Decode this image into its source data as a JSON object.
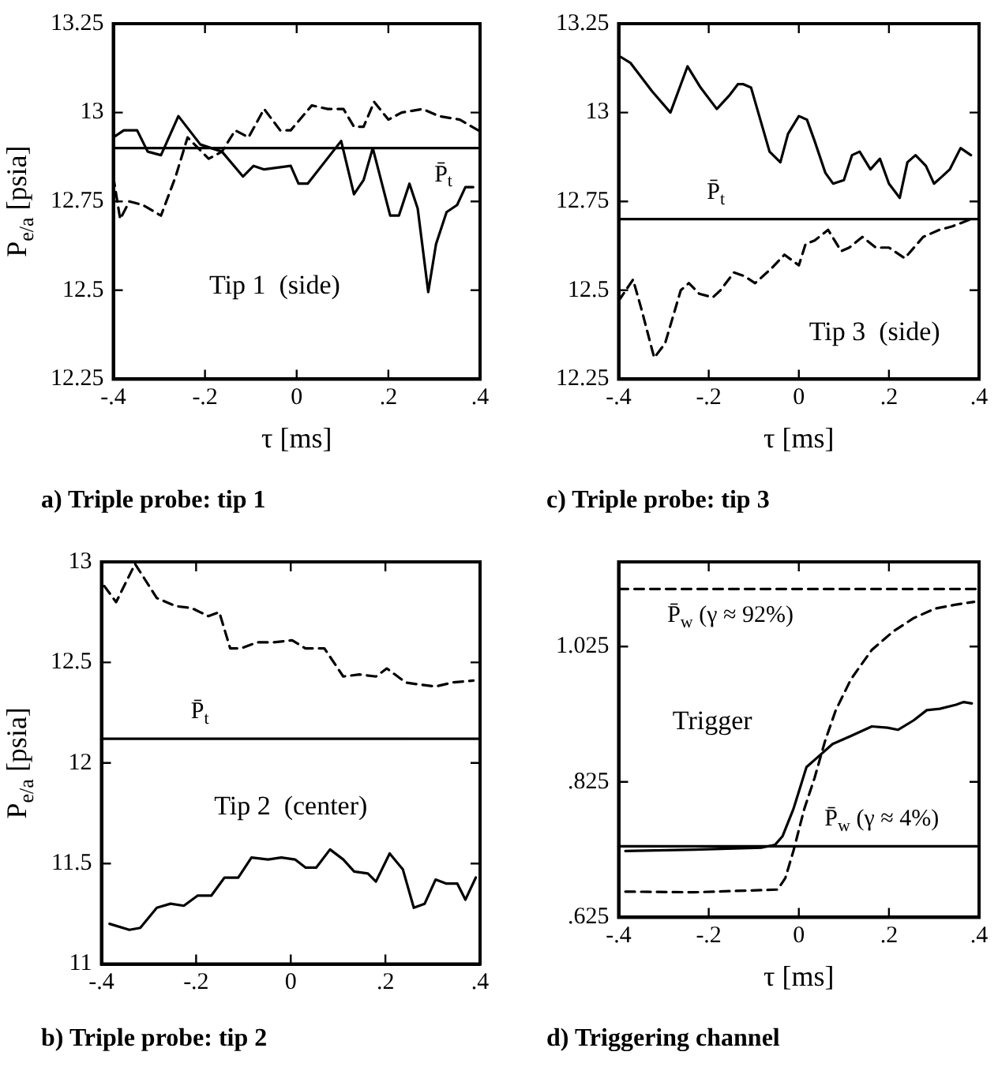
{
  "chart_data": [
    {
      "type": "line",
      "title": "a) Triple probe: tip 1",
      "xlabel": "τ [ms]",
      "ylabel": "P$_{e/a}$ [psia]",
      "xlim": [
        -0.4,
        0.4
      ],
      "xticks": [
        {
          "value": -0.4,
          "label": "-.4"
        },
        {
          "value": -0.2,
          "label": "-.2"
        },
        {
          "value": 0,
          "label": "0"
        },
        {
          "value": 0.2,
          "label": ".2"
        },
        {
          "value": 0.4,
          "label": ".4"
        }
      ],
      "ylim": [
        12.25,
        13.25
      ],
      "yticks": [
        12.25,
        12.5,
        12.75,
        13,
        13.25
      ],
      "grid": false,
      "legend": false,
      "marker": "none",
      "annotations": [
        "Tip 1  (side)"
      ],
      "ref_lines": [
        {
          "axis": "y",
          "value": 12.9,
          "label": "P̄$_{t}$",
          "color": "#000000",
          "line_style": "solid"
        }
      ],
      "series": [
        {
          "color": "#000000",
          "line_style": "solid",
          "x": [
            -0.4,
            -0.377,
            -0.348,
            -0.325,
            -0.296,
            -0.258,
            -0.21,
            -0.163,
            -0.117,
            -0.094,
            -0.071,
            -0.042,
            -0.013,
            0.004,
            0.024,
            0.097,
            0.125,
            0.146,
            0.166,
            0.204,
            0.223,
            0.246,
            0.264,
            0.287,
            0.304,
            0.327,
            0.35,
            0.368,
            0.385
          ],
          "values": [
            12.93,
            12.95,
            12.95,
            12.89,
            12.88,
            12.99,
            12.91,
            12.89,
            12.82,
            12.85,
            12.84,
            12.845,
            12.85,
            12.8,
            12.8,
            12.92,
            12.77,
            12.81,
            12.9,
            12.71,
            12.71,
            12.8,
            12.73,
            12.495,
            12.63,
            12.72,
            12.74,
            12.79,
            12.79
          ]
        },
        {
          "color": "#000000",
          "line_style": "dashed",
          "x": [
            -0.4,
            -0.385,
            -0.365,
            -0.336,
            -0.296,
            -0.264,
            -0.238,
            -0.192,
            -0.163,
            -0.134,
            -0.105,
            -0.071,
            -0.036,
            -0.013,
            0.033,
            0.068,
            0.102,
            0.125,
            0.146,
            0.169,
            0.2,
            0.229,
            0.275,
            0.31,
            0.356,
            0.396
          ],
          "values": [
            12.82,
            12.7,
            12.75,
            12.74,
            12.71,
            12.82,
            12.93,
            12.87,
            12.89,
            12.95,
            12.93,
            13.01,
            12.95,
            12.95,
            13.02,
            13.01,
            13.01,
            12.96,
            12.96,
            13.03,
            12.98,
            13.0,
            13.01,
            12.99,
            12.98,
            12.95
          ]
        }
      ]
    },
    {
      "type": "line",
      "title": "c) Triple probe: tip 3",
      "xlabel": "τ [ms]",
      "xlim": [
        -0.4,
        0.4
      ],
      "xticks": [
        {
          "value": -0.4,
          "label": "-.4"
        },
        {
          "value": -0.2,
          "label": "-.2"
        },
        {
          "value": 0,
          "label": "0"
        },
        {
          "value": 0.2,
          "label": ".2"
        },
        {
          "value": 0.4,
          "label": ".4"
        }
      ],
      "ylim": [
        12.25,
        13.25
      ],
      "yticks": [
        12.25,
        12.5,
        12.75,
        13,
        13.25
      ],
      "grid": false,
      "legend": false,
      "marker": "none",
      "annotations": [
        "Tip 3  (side)"
      ],
      "ref_lines": [
        {
          "axis": "y",
          "value": 12.7,
          "label": "P̄$_{t}$",
          "color": "#000000",
          "line_style": "solid"
        }
      ],
      "series": [
        {
          "color": "#000000",
          "line_style": "solid",
          "x": [
            -0.4,
            -0.374,
            -0.326,
            -0.285,
            -0.247,
            -0.218,
            -0.182,
            -0.153,
            -0.135,
            -0.124,
            -0.106,
            -0.065,
            -0.041,
            -0.024,
            0,
            0.018,
            0.035,
            0.059,
            0.076,
            0.1,
            0.118,
            0.135,
            0.159,
            0.18,
            0.2,
            0.224,
            0.241,
            0.259,
            0.282,
            0.3,
            0.318,
            0.335,
            0.359,
            0.382
          ],
          "values": [
            13.16,
            13.14,
            13.06,
            13.0,
            13.13,
            13.07,
            13.01,
            13.05,
            13.08,
            13.08,
            13.07,
            12.89,
            12.86,
            12.94,
            12.99,
            12.98,
            12.92,
            12.83,
            12.8,
            12.81,
            12.88,
            12.89,
            12.84,
            12.87,
            12.8,
            12.76,
            12.86,
            12.88,
            12.85,
            12.8,
            12.82,
            12.84,
            12.9,
            12.88
          ]
        },
        {
          "color": "#000000",
          "line_style": "dashed",
          "x": [
            -0.4,
            -0.368,
            -0.35,
            -0.321,
            -0.297,
            -0.262,
            -0.244,
            -0.221,
            -0.191,
            -0.174,
            -0.144,
            -0.121,
            -0.097,
            -0.062,
            -0.032,
            0,
            0.015,
            0.035,
            0.065,
            0.094,
            0.112,
            0.141,
            0.171,
            0.2,
            0.235,
            0.276,
            0.312,
            0.341,
            0.382
          ],
          "values": [
            12.47,
            12.53,
            12.45,
            12.31,
            12.35,
            12.5,
            12.52,
            12.49,
            12.48,
            12.5,
            12.55,
            12.54,
            12.52,
            12.56,
            12.6,
            12.57,
            12.63,
            12.64,
            12.67,
            12.61,
            12.62,
            12.65,
            12.62,
            12.62,
            12.59,
            12.65,
            12.67,
            12.68,
            12.7
          ]
        }
      ]
    },
    {
      "type": "line",
      "title": "b) Triple probe: tip 2",
      "ylabel": "P$_{e/a}$ [psia]",
      "xlim": [
        -0.4,
        0.4
      ],
      "xticks": [
        {
          "value": -0.4,
          "label": "-.4"
        },
        {
          "value": -0.2,
          "label": "-.2"
        },
        {
          "value": 0,
          "label": "0"
        },
        {
          "value": 0.2,
          "label": ".2"
        },
        {
          "value": 0.4,
          "label": ".4"
        }
      ],
      "ylim": [
        11,
        13
      ],
      "yticks": [
        11,
        11.5,
        12,
        12.5,
        13
      ],
      "grid": false,
      "legend": false,
      "marker": "none",
      "annotations": [
        "Tip 2  (center)"
      ],
      "ref_lines": [
        {
          "axis": "y",
          "value": 12.12,
          "label": "P̄$_{t}$",
          "color": "#000000",
          "line_style": "solid"
        }
      ],
      "series": [
        {
          "color": "#000000",
          "line_style": "dashed",
          "x": [
            -0.394,
            -0.369,
            -0.329,
            -0.283,
            -0.243,
            -0.209,
            -0.174,
            -0.151,
            -0.128,
            -0.105,
            -0.071,
            -0.037,
            0.003,
            0.031,
            0.071,
            0.111,
            0.145,
            0.18,
            0.203,
            0.243,
            0.272,
            0.306,
            0.341,
            0.386
          ],
          "values": [
            12.88,
            12.8,
            12.99,
            12.82,
            12.78,
            12.77,
            12.73,
            12.75,
            12.57,
            12.57,
            12.6,
            12.6,
            12.61,
            12.57,
            12.57,
            12.43,
            12.44,
            12.43,
            12.47,
            12.4,
            12.39,
            12.38,
            12.4,
            12.41
          ]
        },
        {
          "color": "#000000",
          "line_style": "solid",
          "x": [
            -0.383,
            -0.341,
            -0.318,
            -0.283,
            -0.254,
            -0.226,
            -0.197,
            -0.168,
            -0.14,
            -0.111,
            -0.083,
            -0.048,
            -0.02,
            0.009,
            0.031,
            0.054,
            0.083,
            0.111,
            0.134,
            0.163,
            0.18,
            0.209,
            0.237,
            0.26,
            0.283,
            0.306,
            0.329,
            0.352,
            0.369,
            0.391
          ],
          "values": [
            11.2,
            11.17,
            11.18,
            11.28,
            11.3,
            11.29,
            11.34,
            11.34,
            11.43,
            11.43,
            11.53,
            11.52,
            11.53,
            11.52,
            11.48,
            11.48,
            11.57,
            11.52,
            11.46,
            11.45,
            11.41,
            11.55,
            11.47,
            11.28,
            11.3,
            11.42,
            11.4,
            11.4,
            11.32,
            11.43
          ]
        }
      ]
    },
    {
      "type": "line",
      "title": "d) Triggering channel",
      "xlabel": "τ [ms]",
      "xlim": [
        -0.4,
        0.4
      ],
      "xticks": [
        {
          "value": -0.4,
          "label": "-.4"
        },
        {
          "value": -0.2,
          "label": "-.2"
        },
        {
          "value": 0,
          "label": "0"
        },
        {
          "value": 0.2,
          "label": ".2"
        },
        {
          "value": 0.4,
          "label": ".4"
        }
      ],
      "ylim": [
        0.625,
        1.15
      ],
      "yticks": [
        {
          "value": 0.625,
          "label": ".625"
        },
        {
          "value": 0.825,
          "label": ".825"
        },
        1.025
      ],
      "grid": false,
      "legend": false,
      "marker": "none",
      "annotations": [
        "Trigger"
      ],
      "ref_lines": [
        {
          "axis": "y",
          "value": 1.11,
          "label": "P̄$_{w}$ (γ ≈ 92%)",
          "color": "#000000",
          "line_style": "dashed"
        },
        {
          "axis": "y",
          "value": 0.73,
          "label": "P̄$_{w}$ (γ ≈ 4%)",
          "color": "#000000",
          "line_style": "solid"
        }
      ],
      "series": [
        {
          "color": "#000000",
          "line_style": "solid",
          "x": [
            -0.385,
            -0.233,
            -0.082,
            -0.053,
            -0.036,
            -0.012,
            0.017,
            0.046,
            0.075,
            0.116,
            0.162,
            0.197,
            0.22,
            0.255,
            0.284,
            0.313,
            0.349,
            0.366,
            0.384
          ],
          "values": [
            0.723,
            0.725,
            0.728,
            0.732,
            0.745,
            0.785,
            0.847,
            0.864,
            0.881,
            0.893,
            0.907,
            0.905,
            0.902,
            0.916,
            0.931,
            0.933,
            0.939,
            0.943,
            0.941
          ]
        },
        {
          "color": "#000000",
          "line_style": "dashed",
          "x": [
            -0.385,
            -0.233,
            -0.047,
            -0.03,
            -0.012,
            0.012,
            0.035,
            0.058,
            0.082,
            0.116,
            0.162,
            0.209,
            0.255,
            0.302,
            0.349,
            0.389
          ],
          "values": [
            0.663,
            0.662,
            0.666,
            0.683,
            0.723,
            0.785,
            0.831,
            0.885,
            0.931,
            0.977,
            1.02,
            1.047,
            1.067,
            1.081,
            1.087,
            1.091
          ]
        }
      ]
    }
  ]
}
